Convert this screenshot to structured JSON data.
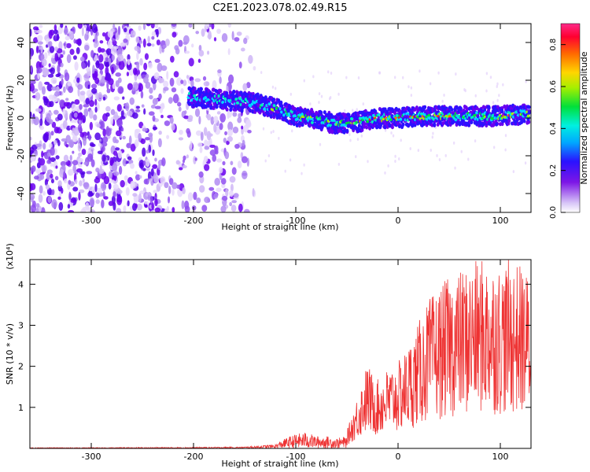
{
  "title": "C2E1.2023.078.02.49.R15",
  "colors": {
    "spectrogram_base": "#6a00f0",
    "spectrogram_light": "#e4d2fb",
    "snr_line": "#ee3333",
    "axis": "#000000"
  },
  "chart_data": [
    {
      "type": "heatmap",
      "name": "spectrogram",
      "xlabel": "Height of straight line (km)",
      "ylabel": "Frequency (Hz)",
      "xlim": [
        -360,
        130
      ],
      "ylim": [
        -50,
        50
      ],
      "x_ticks": [
        -300,
        -200,
        -100,
        0,
        100
      ],
      "y_ticks": [
        -40,
        -20,
        0,
        20,
        40
      ],
      "grid": false,
      "colorbar": {
        "label": "Normalized spectral amplitude",
        "range": [
          0.0,
          0.9
        ],
        "ticks": [
          0.0,
          0.2,
          0.4,
          0.6,
          0.8
        ],
        "colormap": "rainbow (purple to red)"
      },
      "signal_track": {
        "x": [
          -200,
          -180,
          -160,
          -140,
          -120,
          -100,
          -80,
          -60,
          -40,
          -20,
          0,
          20,
          40,
          60,
          80,
          100,
          120
        ],
        "frequency": [
          11,
          10,
          9,
          8,
          5,
          1,
          -1,
          -3,
          -2,
          0,
          0,
          1,
          1,
          1,
          1,
          1,
          2
        ]
      }
    },
    {
      "type": "line",
      "name": "snr",
      "xlabel": "Height of straight line (km)",
      "ylabel": "SNR (10 * v/v)",
      "y_multiplier": "(x10⁴)",
      "xlim": [
        -360,
        130
      ],
      "ylim": [
        0,
        4.6
      ],
      "x_ticks": [
        -300,
        -200,
        -100,
        0,
        100
      ],
      "y_ticks": [
        1,
        2,
        3,
        4
      ],
      "grid": false,
      "series": [
        {
          "x": [
            -360,
            -300,
            -200,
            -150,
            -120,
            -110,
            -100,
            -90,
            -80,
            -70,
            -60,
            -50,
            -45,
            -40,
            -35,
            -30,
            -25,
            -20,
            -10,
            0,
            10,
            20,
            30,
            40,
            50,
            60,
            70,
            80,
            90,
            100,
            110,
            120,
            130
          ],
          "y": [
            0.02,
            0.02,
            0.03,
            0.04,
            0.1,
            0.25,
            0.35,
            0.4,
            0.3,
            0.3,
            0.25,
            0.3,
            0.6,
            0.9,
            1.2,
            1.5,
            1.3,
            1.2,
            1.4,
            1.5,
            1.8,
            2.2,
            2.6,
            2.8,
            3.0,
            3.1,
            3.2,
            3.3,
            3.3,
            3.2,
            3.3,
            3.2,
            3.0
          ]
        }
      ]
    }
  ]
}
